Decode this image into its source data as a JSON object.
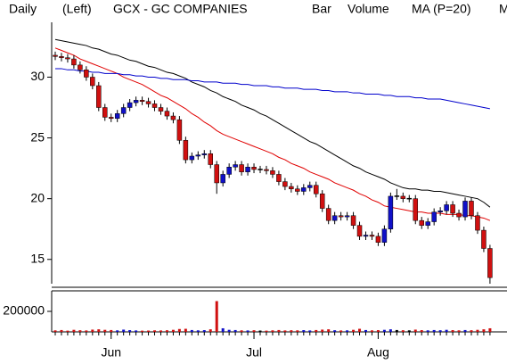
{
  "chart_data": {
    "type": "candlestick",
    "period": "Daily",
    "scale_side": "(Left)",
    "title": "GCX - GC COMPANIES",
    "style_label": "Bar",
    "legend_cut": "M",
    "categories": [
      null,
      null,
      null,
      null,
      null,
      null,
      null,
      null,
      null,
      "Jun",
      null,
      null,
      null,
      null,
      null,
      null,
      null,
      null,
      null,
      null,
      null,
      null,
      null,
      null,
      null,
      null,
      null,
      null,
      null,
      null,
      null,
      null,
      "Jul",
      null,
      null,
      null,
      null,
      null,
      null,
      null,
      null,
      null,
      null,
      null,
      null,
      null,
      null,
      null,
      null,
      null,
      null,
      null,
      "Aug",
      null,
      null,
      null,
      null,
      null,
      null,
      null,
      null,
      null,
      null,
      null,
      null,
      null,
      null,
      null,
      null,
      null,
      null
    ],
    "open": [
      31.8,
      31.7,
      31.6,
      31.5,
      31.0,
      30.6,
      30.0,
      29.3,
      27.5,
      26.7,
      26.6,
      27.0,
      27.5,
      27.9,
      28.1,
      28.0,
      27.8,
      27.5,
      27.2,
      26.8,
      26.5,
      24.8,
      23.2,
      23.5,
      23.6,
      23.7,
      22.8,
      21.3,
      22.0,
      22.6,
      22.8,
      22.2,
      22.6,
      22.4,
      22.4,
      22.3,
      22.0,
      21.4,
      21.0,
      20.8,
      20.6,
      20.9,
      21.1,
      20.4,
      19.2,
      18.2,
      18.6,
      18.5,
      18.6,
      17.8,
      16.9,
      17.0,
      16.9,
      16.4,
      17.5,
      20.2,
      20.2,
      20.0,
      20.0,
      18.2,
      17.8,
      18.1,
      18.9,
      19.0,
      19.5,
      18.8,
      18.5,
      19.8,
      18.6,
      17.4,
      15.9
    ],
    "high": [
      32.1,
      32.0,
      31.9,
      31.8,
      31.3,
      30.9,
      30.3,
      29.6,
      27.8,
      27.0,
      27.3,
      27.8,
      28.2,
      28.4,
      28.4,
      28.3,
      28.1,
      27.8,
      27.5,
      27.1,
      26.8,
      25.1,
      23.8,
      23.9,
      24.0,
      24.0,
      23.1,
      22.3,
      22.9,
      23.1,
      23.1,
      22.9,
      22.9,
      22.7,
      22.7,
      22.6,
      22.3,
      21.7,
      21.3,
      21.1,
      21.2,
      21.4,
      21.4,
      20.7,
      19.5,
      18.9,
      18.9,
      18.9,
      18.9,
      18.1,
      17.3,
      17.3,
      17.2,
      17.8,
      20.5,
      20.8,
      20.5,
      20.3,
      20.3,
      18.5,
      18.4,
      19.2,
      19.3,
      19.8,
      19.8,
      19.1,
      20.1,
      20.1,
      18.9,
      17.7,
      16.2
    ],
    "low": [
      31.4,
      31.3,
      31.2,
      30.7,
      30.3,
      29.7,
      29.0,
      27.2,
      26.4,
      26.3,
      26.3,
      26.7,
      27.2,
      27.6,
      27.7,
      27.5,
      27.2,
      26.9,
      26.5,
      26.2,
      24.5,
      22.9,
      22.9,
      23.2,
      23.3,
      22.5,
      20.4,
      21.0,
      21.7,
      22.3,
      21.9,
      21.9,
      22.1,
      22.1,
      22.0,
      21.7,
      21.1,
      20.7,
      20.5,
      20.3,
      20.3,
      20.6,
      20.1,
      18.9,
      17.9,
      17.9,
      18.2,
      18.2,
      17.5,
      16.6,
      16.6,
      16.6,
      16.1,
      16.1,
      17.2,
      19.9,
      19.7,
      19.7,
      17.9,
      17.5,
      17.5,
      17.8,
      18.6,
      18.7,
      18.5,
      18.2,
      18.2,
      18.3,
      17.1,
      15.6,
      13.0
    ],
    "close": [
      31.7,
      31.6,
      31.5,
      31.0,
      30.6,
      30.0,
      29.3,
      27.5,
      26.7,
      26.6,
      27.0,
      27.5,
      27.9,
      28.1,
      28.0,
      27.8,
      27.5,
      27.2,
      26.8,
      26.5,
      24.8,
      23.2,
      23.5,
      23.6,
      23.7,
      22.8,
      21.3,
      22.0,
      22.6,
      22.8,
      22.2,
      22.6,
      22.4,
      22.4,
      22.3,
      22.0,
      21.4,
      21.0,
      20.8,
      20.6,
      20.9,
      21.1,
      20.4,
      19.2,
      18.2,
      18.6,
      18.5,
      18.6,
      17.8,
      16.9,
      17.0,
      16.9,
      16.4,
      17.5,
      20.2,
      20.2,
      20.0,
      20.0,
      18.2,
      17.8,
      18.1,
      18.9,
      19.0,
      19.5,
      18.8,
      18.5,
      19.8,
      18.6,
      17.4,
      15.9,
      13.5
    ],
    "up_color": "#1010c8",
    "down_color": "#d01010",
    "flat_color": "#000000",
    "wick_color": "#000000",
    "ylim": [
      13,
      34
    ],
    "yticks": [
      15,
      20,
      25,
      30
    ],
    "overlays": [
      {
        "name": "MA (P=20)",
        "color": "#e00000",
        "values": [
          32.4,
          32.2,
          32.0,
          31.8,
          31.5,
          31.3,
          31.1,
          30.9,
          30.7,
          30.5,
          30.3,
          30.0,
          29.8,
          29.6,
          29.4,
          29.1,
          28.8,
          28.5,
          28.3,
          28.0,
          27.7,
          27.4,
          27.0,
          26.7,
          26.3,
          26.0,
          25.6,
          25.3,
          25.1,
          24.9,
          24.7,
          24.5,
          24.3,
          24.1,
          23.9,
          23.7,
          23.4,
          23.2,
          22.9,
          22.7,
          22.5,
          22.2,
          22.0,
          21.8,
          21.6,
          21.3,
          21.1,
          20.9,
          20.7,
          20.4,
          20.2,
          19.9,
          19.7,
          19.4,
          19.3,
          19.2,
          19.1,
          19.0,
          18.9,
          18.9,
          18.8,
          18.8,
          18.8,
          18.7,
          18.7,
          18.7,
          18.6,
          18.6,
          18.5,
          18.4,
          18.2
        ]
      },
      {
        "color": "#000000",
        "values": [
          33.1,
          33.0,
          32.9,
          32.8,
          32.7,
          32.6,
          32.4,
          32.3,
          32.1,
          31.9,
          31.8,
          31.6,
          31.4,
          31.3,
          31.1,
          30.9,
          30.8,
          30.6,
          30.4,
          30.3,
          30.1,
          29.9,
          29.6,
          29.4,
          29.2,
          28.9,
          28.7,
          28.4,
          28.2,
          28.0,
          27.7,
          27.5,
          27.3,
          27.0,
          26.8,
          26.5,
          26.2,
          25.9,
          25.6,
          25.3,
          25.0,
          24.7,
          24.5,
          24.2,
          23.9,
          23.6,
          23.3,
          23.0,
          22.7,
          22.5,
          22.2,
          22.0,
          21.8,
          21.6,
          21.3,
          21.1,
          20.9,
          20.8,
          20.8,
          20.7,
          20.7,
          20.6,
          20.6,
          20.5,
          20.4,
          20.3,
          20.2,
          20.1,
          20.0,
          19.7,
          19.3
        ]
      },
      {
        "color": "#0000cc",
        "values": [
          30.7,
          30.7,
          30.6,
          30.6,
          30.5,
          30.5,
          30.4,
          30.4,
          30.3,
          30.3,
          30.3,
          30.2,
          30.2,
          30.1,
          30.1,
          30.0,
          30.0,
          29.9,
          29.9,
          29.8,
          29.8,
          29.8,
          29.7,
          29.7,
          29.6,
          29.6,
          29.6,
          29.5,
          29.5,
          29.5,
          29.4,
          29.4,
          29.3,
          29.3,
          29.3,
          29.2,
          29.2,
          29.1,
          29.1,
          29.1,
          29.0,
          29.0,
          29.0,
          28.9,
          28.9,
          28.8,
          28.8,
          28.8,
          28.7,
          28.7,
          28.6,
          28.6,
          28.6,
          28.5,
          28.5,
          28.4,
          28.4,
          28.4,
          28.3,
          28.3,
          28.2,
          28.2,
          28.2,
          28.1,
          28.0,
          27.9,
          27.8,
          27.7,
          27.6,
          27.5,
          27.4
        ]
      }
    ],
    "volume": {
      "name": "Volume",
      "color": "#00a000",
      "values": [
        15000,
        18000,
        12000,
        20000,
        16000,
        14000,
        22000,
        25000,
        20000,
        18000,
        15000,
        22000,
        17000,
        14000,
        12000,
        13000,
        15000,
        14000,
        16000,
        20000,
        28000,
        30000,
        18000,
        15000,
        17000,
        25000,
        300000,
        35000,
        20000,
        18000,
        15000,
        14000,
        16000,
        13000,
        12000,
        15000,
        18000,
        14000,
        16000,
        15000,
        17000,
        14000,
        18000,
        22000,
        25000,
        16000,
        14000,
        15000,
        20000,
        30000,
        18000,
        15000,
        17000,
        20000,
        25000,
        18000,
        16000,
        15000,
        22000,
        17000,
        15000,
        18000,
        16000,
        20000,
        17000,
        15000,
        18000,
        16000,
        20000,
        25000,
        35000
      ],
      "ylim": [
        0,
        400000
      ],
      "yticks": [
        200000
      ]
    }
  }
}
